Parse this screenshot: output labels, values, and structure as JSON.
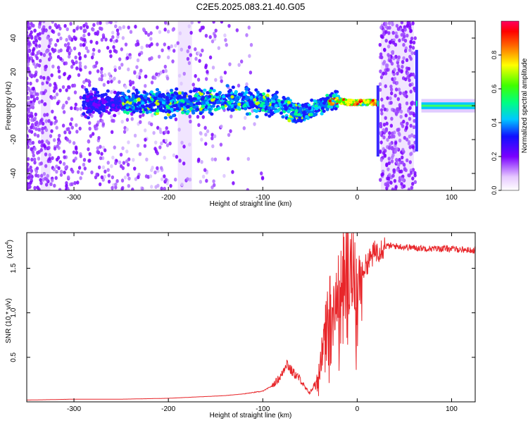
{
  "title": "C2E5.2025.083.21.40.G05",
  "colors": {
    "snr_line": "#e8262a",
    "colormap": [
      "#ffffff",
      "#f0e0ff",
      "#c080ff",
      "#7a00ff",
      "#2020ff",
      "#00c0ff",
      "#00ffa0",
      "#40ff00",
      "#ffff00",
      "#ff8000",
      "#ff0000",
      "#ff0060"
    ]
  },
  "chart_data": [
    {
      "type": "heatmap",
      "xlabel": "Height of straight line (km)",
      "ylabel": "Frequency (Hz)",
      "xlim": [
        -350,
        125
      ],
      "ylim": [
        -50,
        50
      ],
      "x_ticks": [
        "-300",
        "-200",
        "-100",
        "0",
        "100"
      ],
      "x_tick_values": [
        -300,
        -200,
        -100,
        0,
        100
      ],
      "y_ticks": [
        "40",
        "20",
        "0",
        "-20",
        "-40"
      ],
      "y_tick_values": [
        40,
        20,
        0,
        -20,
        -40
      ],
      "colorbar": {
        "label": "Normalized spectral amplitude",
        "ticks": [
          "0.0",
          "0.2",
          "0.4",
          "0.6",
          "0.8"
        ],
        "tick_values": [
          0.0,
          0.2,
          0.4,
          0.6,
          0.8
        ],
        "range": [
          0,
          1
        ]
      },
      "ridge": {
        "x": [
          -290,
          -250,
          -200,
          -150,
          -120,
          -100,
          -80,
          -60,
          -50,
          -40,
          -30,
          -20,
          -10,
          0,
          10,
          20,
          25,
          30,
          65,
          70,
          80,
          100,
          125
        ],
        "y": [
          1,
          2,
          2,
          3,
          3,
          2,
          0,
          -5,
          -3,
          0,
          2,
          3,
          2,
          2,
          2,
          2,
          0,
          0,
          0,
          0,
          0,
          0,
          0
        ]
      }
    },
    {
      "type": "line",
      "xlabel": "Height of straight line (km)",
      "ylabel": "SNR (10 * v/v)",
      "y_scale_label": "(x10",
      "y_scale_exponent": "4",
      "xlim": [
        -350,
        125
      ],
      "ylim": [
        0,
        1.9
      ],
      "x_ticks": [
        "-300",
        "-200",
        "-100",
        "0",
        "100"
      ],
      "x_tick_values": [
        -300,
        -200,
        -100,
        0,
        100
      ],
      "y_ticks": [
        "1.5",
        "1.0",
        "0.5"
      ],
      "y_tick_values": [
        1.5,
        1.0,
        0.5
      ],
      "series": [
        {
          "x": [
            -350,
            -300,
            -250,
            -200,
            -180,
            -160,
            -140,
            -120,
            -100,
            -90,
            -80,
            -75,
            -70,
            -60,
            -55,
            -50,
            -45,
            -40,
            -35,
            -30,
            -25,
            -20,
            -15,
            -10,
            -5,
            0,
            5,
            10,
            20,
            30,
            40,
            60,
            80,
            100,
            110,
            125
          ],
          "values": [
            0.02,
            0.03,
            0.03,
            0.04,
            0.05,
            0.06,
            0.07,
            0.09,
            0.12,
            0.18,
            0.3,
            0.45,
            0.35,
            0.25,
            0.15,
            0.1,
            0.2,
            0.35,
            0.7,
            1.05,
            1.15,
            1.25,
            1.45,
            1.55,
            1.4,
            1.3,
            1.45,
            1.55,
            1.7,
            1.75,
            1.75,
            1.73,
            1.72,
            1.72,
            1.71,
            1.7
          ]
        }
      ]
    }
  ]
}
